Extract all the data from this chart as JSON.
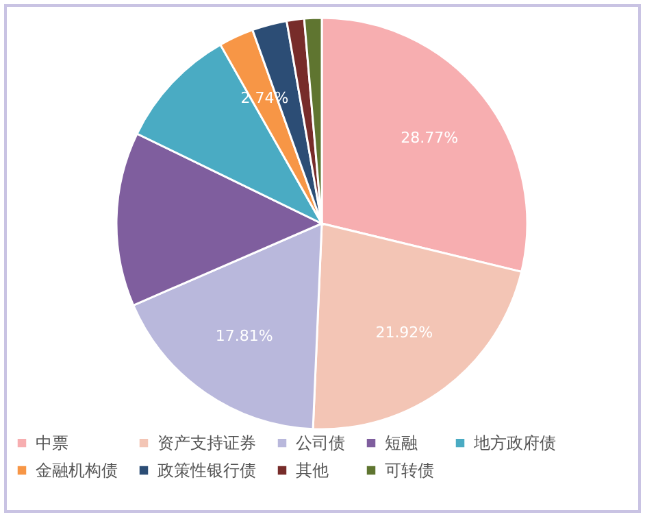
{
  "chart_data": {
    "type": "pie",
    "categories": [
      "中票",
      "资产支持证券",
      "公司债",
      "短融",
      "地方政府债",
      "金融机构债",
      "政策性银行债",
      "其他",
      "可转债"
    ],
    "values": [
      28.77,
      21.92,
      17.81,
      13.7,
      9.59,
      2.74,
      2.74,
      1.37,
      1.37
    ],
    "colors": [
      "#f7aeb0",
      "#f3c5b5",
      "#b9b8dc",
      "#7f5e9e",
      "#4aabc3",
      "#f79646",
      "#2c4d75",
      "#772c2a",
      "#5f7530"
    ],
    "value_labels": [
      "28.77%",
      "21.92%",
      "17.81%",
      null,
      null,
      "2.74%",
      null,
      null,
      null
    ],
    "legend": "bottom"
  }
}
